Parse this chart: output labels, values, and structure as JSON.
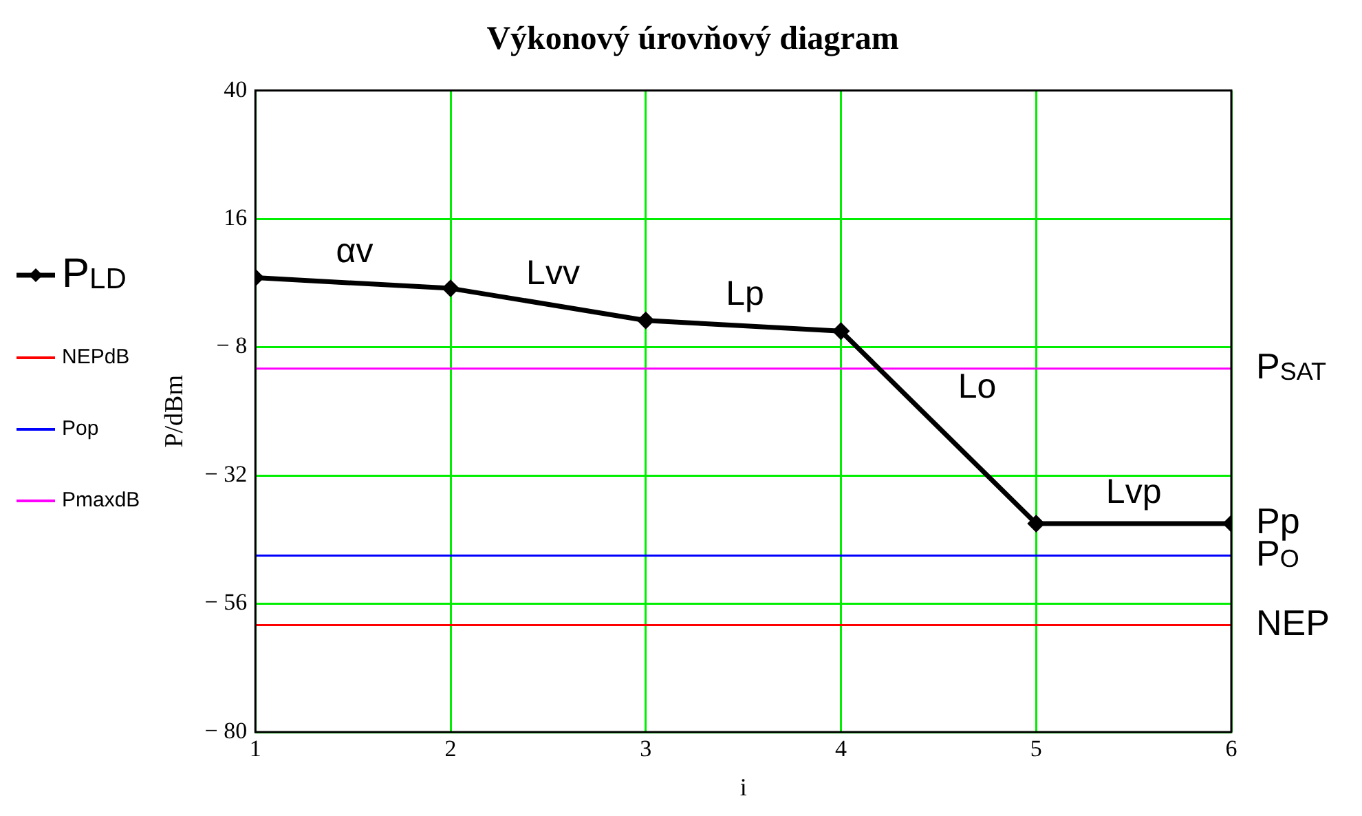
{
  "chart_data": {
    "type": "line",
    "title": "Výkonový úrovňový diagram",
    "xlabel": "i",
    "ylabel": "P/dBm",
    "xlim": [
      1,
      6
    ],
    "xticks": [
      1,
      2,
      3,
      4,
      5,
      6
    ],
    "ylim": [
      -80,
      40
    ],
    "yticks": [
      -80,
      -56,
      -32,
      -8,
      16,
      40
    ],
    "grid": true,
    "legend": "left",
    "line_style": "solid",
    "series": [
      {
        "name": "P$_{LD}$",
        "color": "#000000",
        "x": [
          1,
          2,
          3,
          4,
          5,
          6
        ],
        "values": [
          5,
          3,
          -3,
          -5,
          -41,
          -41
        ],
        "marker": "diamond"
      },
      {
        "name": "NEPdB",
        "color": "#ff0000",
        "x": [
          1,
          6
        ],
        "values": [
          -60,
          -60
        ],
        "marker": "none"
      },
      {
        "name": "Pop",
        "color": "#0000ff",
        "x": [
          1,
          6
        ],
        "values": [
          -47,
          -47
        ],
        "marker": "none"
      },
      {
        "name": "PmaxdB",
        "color": "#ff00ff",
        "x": [
          1,
          6
        ],
        "values": [
          -12,
          -12
        ],
        "marker": "none"
      }
    ],
    "annotations": [
      "αv",
      "Lvv",
      "Lp",
      "Lo",
      "Lvp",
      "P$_{SAT}$",
      "Pp",
      "P$_{O}$",
      "NEP"
    ]
  }
}
